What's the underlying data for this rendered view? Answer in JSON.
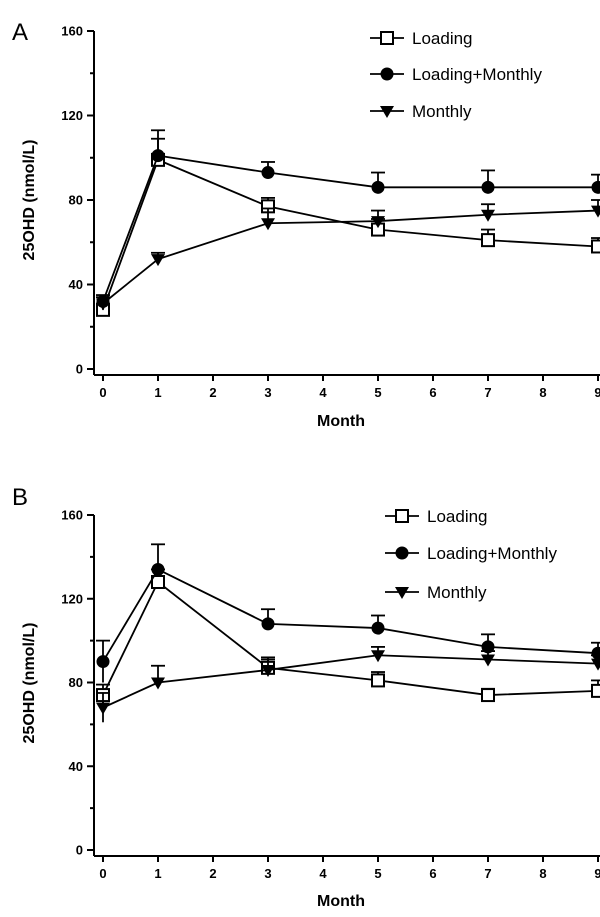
{
  "chart_data": [
    {
      "panel": "A",
      "type": "line",
      "xlabel": "Month",
      "ylabel": "25OHD (nmol/L)",
      "xlim": [
        0,
        9
      ],
      "ylim": [
        0,
        160
      ],
      "x_ticks": [
        0,
        1,
        2,
        3,
        4,
        5,
        6,
        7,
        8,
        9
      ],
      "y_ticks": [
        0,
        40,
        80,
        120,
        160
      ],
      "x": [
        0,
        1,
        3,
        5,
        7,
        9
      ],
      "legend_position": "top-right",
      "grid": false,
      "series": [
        {
          "name": "Loading",
          "marker": "square-open",
          "values": [
            28,
            99,
            77,
            66,
            61,
            58
          ],
          "error": [
            3,
            14,
            4,
            5,
            5,
            4
          ]
        },
        {
          "name": "Loading+Monthly",
          "marker": "circle-filled",
          "values": [
            32,
            101,
            93,
            86,
            86,
            86
          ],
          "error": [
            3,
            8,
            5,
            7,
            8,
            6
          ]
        },
        {
          "name": "Monthly",
          "marker": "triangle-down-filled",
          "values": [
            31,
            52,
            69,
            70,
            73,
            75
          ],
          "error": [
            3,
            3,
            7,
            5,
            5,
            5
          ]
        }
      ]
    },
    {
      "panel": "B",
      "type": "line",
      "xlabel": "Month",
      "ylabel": "25OHD (nmol/L)",
      "xlim": [
        0,
        9
      ],
      "ylim": [
        0,
        160
      ],
      "x_ticks": [
        0,
        1,
        2,
        3,
        4,
        5,
        6,
        7,
        8,
        9
      ],
      "y_ticks": [
        0,
        40,
        80,
        120,
        160
      ],
      "x": [
        0,
        1,
        3,
        5,
        7,
        9
      ],
      "legend_position": "top-right",
      "grid": false,
      "series": [
        {
          "name": "Loading",
          "marker": "square-open",
          "values": [
            74,
            128,
            87,
            81,
            74,
            76
          ],
          "error": [
            5,
            6,
            4,
            4,
            3,
            5
          ]
        },
        {
          "name": "Loading+Monthly",
          "marker": "circle-filled",
          "values": [
            90,
            134,
            108,
            106,
            97,
            94
          ],
          "error": [
            10,
            12,
            7,
            6,
            6,
            5
          ]
        },
        {
          "name": "Monthly",
          "marker": "triangle-down-filled",
          "values": [
            68,
            80,
            86,
            93,
            91,
            89
          ],
          "error": [
            7,
            8,
            6,
            4,
            4,
            4
          ]
        }
      ]
    }
  ]
}
